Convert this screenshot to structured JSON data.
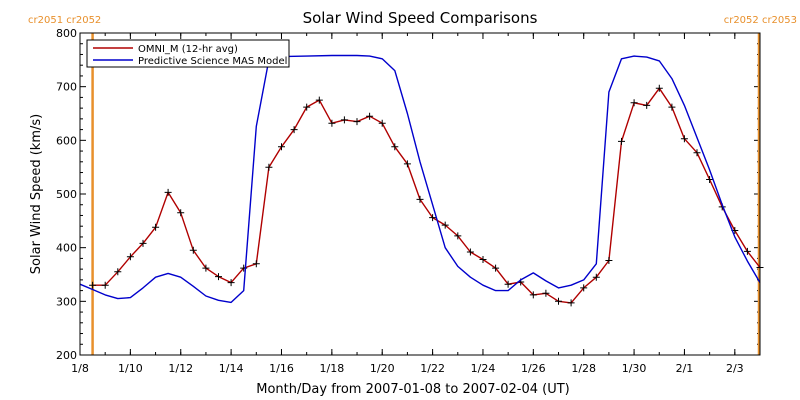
{
  "chart_data": {
    "type": "line",
    "title": "Solar Wind Speed Comparisons",
    "xlabel": "Month/Day from 2007-01-08 to 2007-02-04 (UT)",
    "ylabel": "Solar Wind Speed (km/s)",
    "ylim": [
      200,
      800
    ],
    "yticks": [
      200,
      300,
      400,
      500,
      600,
      700,
      800
    ],
    "xlim": [
      "2007-01-08",
      "2007-02-04"
    ],
    "xticks": [
      {
        "date": "2007-01-08",
        "label": "1/8"
      },
      {
        "date": "2007-01-10",
        "label": "1/10"
      },
      {
        "date": "2007-01-12",
        "label": "1/12"
      },
      {
        "date": "2007-01-14",
        "label": "1/14"
      },
      {
        "date": "2007-01-16",
        "label": "1/16"
      },
      {
        "date": "2007-01-18",
        "label": "1/18"
      },
      {
        "date": "2007-01-20",
        "label": "1/20"
      },
      {
        "date": "2007-01-22",
        "label": "1/22"
      },
      {
        "date": "2007-01-24",
        "label": "1/24"
      },
      {
        "date": "2007-01-26",
        "label": "1/26"
      },
      {
        "date": "2007-01-28",
        "label": "1/28"
      },
      {
        "date": "2007-01-30",
        "label": "1/30"
      },
      {
        "date": "2007-02-01",
        "label": "2/1"
      },
      {
        "date": "2007-02-03",
        "label": "2/3"
      }
    ],
    "legend_position": "top-left",
    "carrington_markers": [
      {
        "date": "2007-01-08 12:00",
        "label": "cr2051 cr2052",
        "color": "#e8902c"
      },
      {
        "date": "2007-02-04",
        "label": "cr2052 cr2053",
        "color": "#e8902c"
      }
    ],
    "series": [
      {
        "name": "OMNI_M (12-hr avg)",
        "color": "#b00000",
        "marker": "plus",
        "x": [
          "2007-01-08 12:00",
          "2007-01-09 00:00",
          "2007-01-09 12:00",
          "2007-01-10 00:00",
          "2007-01-10 12:00",
          "2007-01-11 00:00",
          "2007-01-11 12:00",
          "2007-01-12 00:00",
          "2007-01-12 12:00",
          "2007-01-13 00:00",
          "2007-01-13 12:00",
          "2007-01-14 00:00",
          "2007-01-14 12:00",
          "2007-01-15 00:00",
          "2007-01-15 12:00",
          "2007-01-16 00:00",
          "2007-01-16 12:00",
          "2007-01-17 00:00",
          "2007-01-17 12:00",
          "2007-01-18 00:00",
          "2007-01-18 12:00",
          "2007-01-19 00:00",
          "2007-01-19 12:00",
          "2007-01-20 00:00",
          "2007-01-20 12:00",
          "2007-01-21 00:00",
          "2007-01-21 12:00",
          "2007-01-22 00:00",
          "2007-01-22 12:00",
          "2007-01-23 00:00",
          "2007-01-23 12:00",
          "2007-01-24 00:00",
          "2007-01-24 12:00",
          "2007-01-25 00:00",
          "2007-01-25 12:00",
          "2007-01-26 00:00",
          "2007-01-26 12:00",
          "2007-01-27 00:00",
          "2007-01-27 12:00",
          "2007-01-28 00:00",
          "2007-01-28 12:00",
          "2007-01-29 00:00",
          "2007-01-29 12:00",
          "2007-01-30 00:00",
          "2007-01-30 12:00",
          "2007-01-31 00:00",
          "2007-01-31 12:00",
          "2007-02-01 00:00",
          "2007-02-01 12:00",
          "2007-02-02 00:00",
          "2007-02-02 12:00",
          "2007-02-03 00:00",
          "2007-02-03 12:00",
          "2007-02-04 00:00"
        ],
        "values": [
          330,
          330,
          355,
          383,
          408,
          438,
          503,
          465,
          395,
          362,
          346,
          335,
          362,
          370,
          550,
          588,
          620,
          662,
          675,
          632,
          638,
          635,
          645,
          632,
          588,
          556,
          490,
          456,
          442,
          422,
          392,
          378,
          362,
          332,
          336,
          312,
          315,
          300,
          297,
          325,
          345,
          376,
          598,
          670,
          665,
          697,
          662,
          603,
          577,
          527,
          476,
          432,
          393,
          363
        ]
      },
      {
        "name": "Predictive Science MAS Model",
        "color": "#0000cc",
        "x": [
          "2007-01-08 00:00",
          "2007-01-08 12:00",
          "2007-01-09 00:00",
          "2007-01-09 12:00",
          "2007-01-10 00:00",
          "2007-01-10 12:00",
          "2007-01-11 00:00",
          "2007-01-11 12:00",
          "2007-01-12 00:00",
          "2007-01-12 12:00",
          "2007-01-13 00:00",
          "2007-01-13 12:00",
          "2007-01-14 00:00",
          "2007-01-14 12:00",
          "2007-01-15 00:00",
          "2007-01-15 12:00",
          "2007-01-16 00:00",
          "2007-01-17 00:00",
          "2007-01-18 00:00",
          "2007-01-19 00:00",
          "2007-01-19 12:00",
          "2007-01-20 00:00",
          "2007-01-20 12:00",
          "2007-01-21 00:00",
          "2007-01-21 12:00",
          "2007-01-22 00:00",
          "2007-01-22 12:00",
          "2007-01-23 00:00",
          "2007-01-23 12:00",
          "2007-01-24 00:00",
          "2007-01-24 12:00",
          "2007-01-25 00:00",
          "2007-01-25 12:00",
          "2007-01-26 00:00",
          "2007-01-26 12:00",
          "2007-01-27 00:00",
          "2007-01-27 12:00",
          "2007-01-28 00:00",
          "2007-01-28 12:00",
          "2007-01-29 00:00",
          "2007-01-29 12:00",
          "2007-01-30 00:00",
          "2007-01-30 12:00",
          "2007-01-31 00:00",
          "2007-01-31 12:00",
          "2007-02-01 00:00",
          "2007-02-01 12:00",
          "2007-02-02 00:00",
          "2007-02-02 12:00",
          "2007-02-03 00:00",
          "2007-02-03 12:00",
          "2007-02-04 00:00"
        ],
        "values": [
          332,
          322,
          312,
          305,
          307,
          325,
          345,
          352,
          345,
          328,
          310,
          302,
          298,
          320,
          626,
          750,
          756,
          757,
          758,
          758,
          757,
          752,
          730,
          650,
          560,
          480,
          400,
          365,
          345,
          330,
          320,
          320,
          340,
          353,
          338,
          325,
          330,
          340,
          370,
          690,
          752,
          757,
          755,
          748,
          715,
          665,
          605,
          545,
          480,
          420,
          375,
          335
        ]
      }
    ]
  }
}
